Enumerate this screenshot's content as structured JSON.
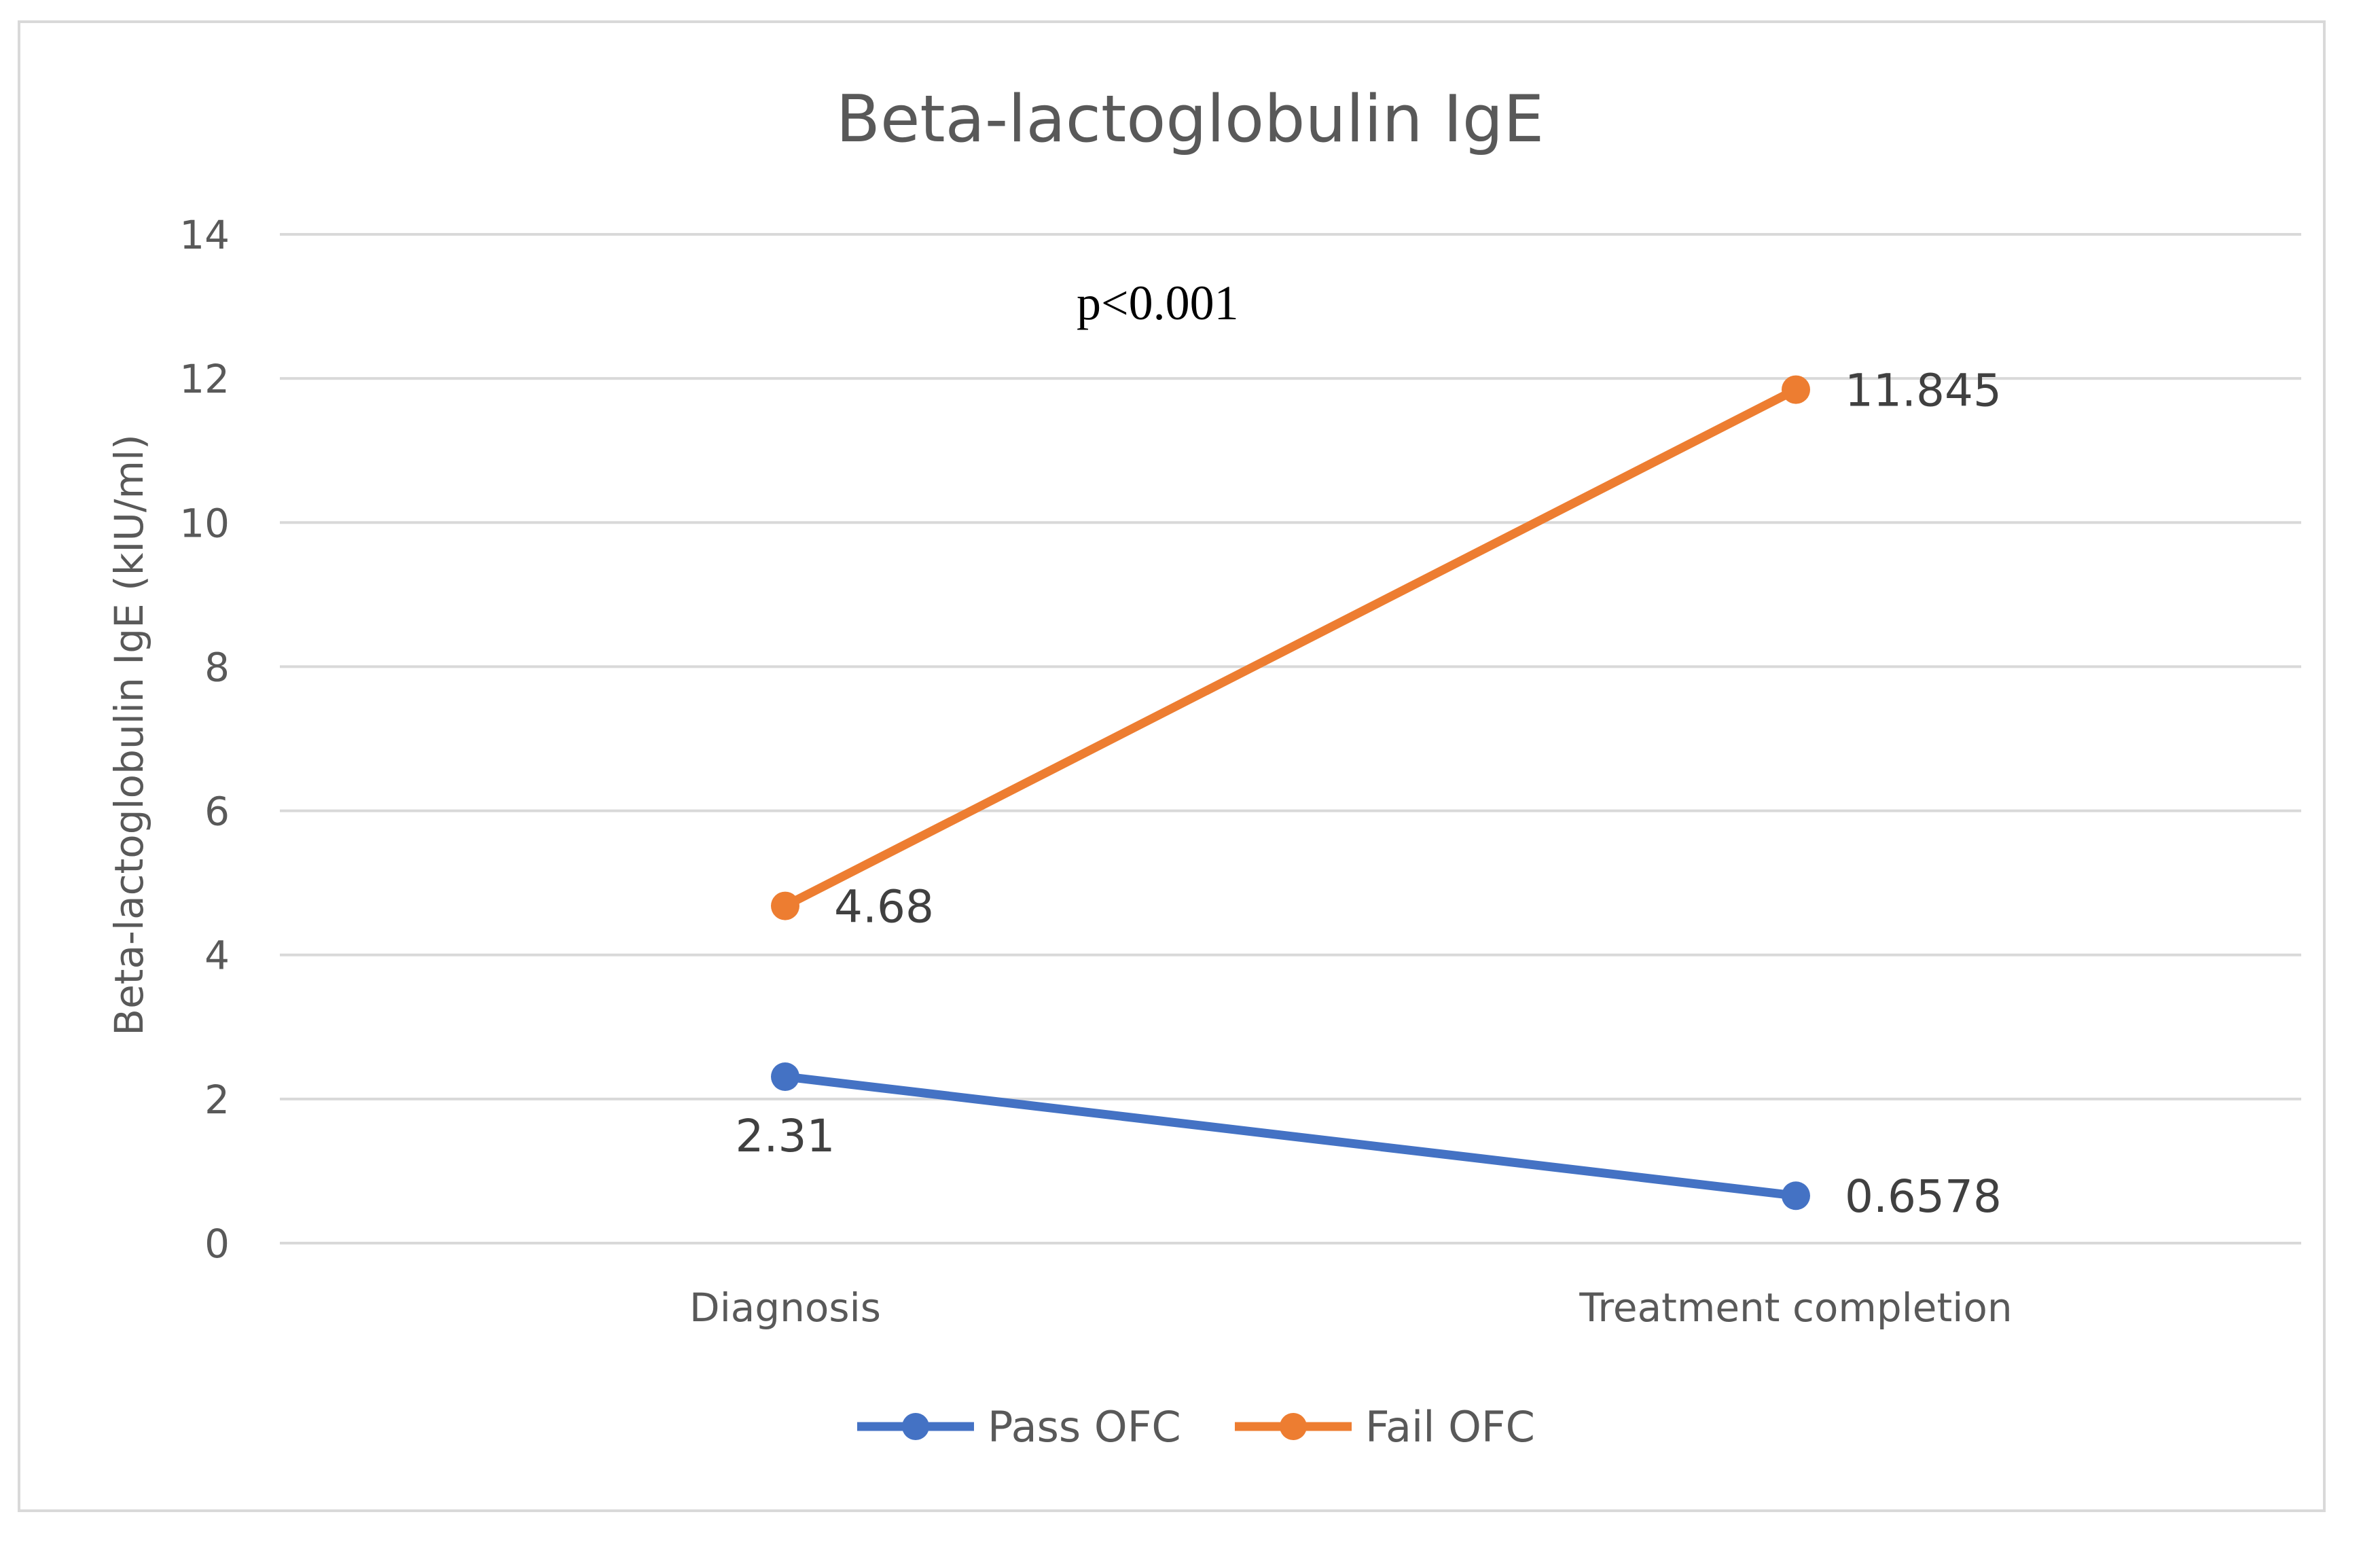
{
  "chart_data": {
    "type": "line",
    "title": "Beta-lactoglobulin IgE",
    "xlabel": "",
    "ylabel": "Beta-lactoglobulin IgE (kIU/ml)",
    "categories": [
      "Diagnosis",
      "Treatment completion"
    ],
    "ylim": [
      0,
      14
    ],
    "yticks": [
      0,
      2,
      4,
      6,
      8,
      10,
      12,
      14
    ],
    "grid": true,
    "legend": "bottom",
    "series": [
      {
        "name": "Pass OFC",
        "values": [
          2.31,
          0.6578
        ],
        "labels": [
          "2.31",
          "0.6578"
        ],
        "color": "#4472c4"
      },
      {
        "name": "Fail OFC",
        "values": [
          4.68,
          11.845
        ],
        "labels": [
          "4.68",
          "11.845"
        ],
        "color": "#ed7d31"
      }
    ],
    "annotation": "p<0.001"
  }
}
